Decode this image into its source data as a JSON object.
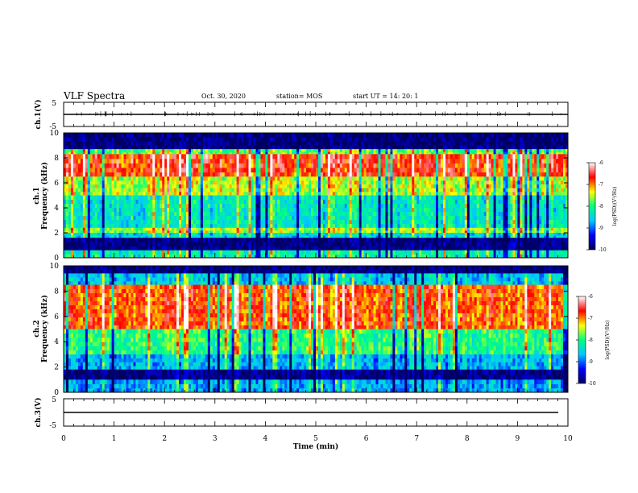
{
  "header": {
    "title": "VLF Spectra",
    "date": "Oct. 30, 2020",
    "station": "station= MOS",
    "start": "start UT =  14: 20: 1"
  },
  "colors": {
    "colormap": [
      "#000060",
      "#0000ff",
      "#00c8ff",
      "#00ff80",
      "#ffff00",
      "#ff0000",
      "#ffffff"
    ],
    "axis": "#000000"
  },
  "chart_data": [
    {
      "type": "line",
      "name": "waveform-ch1",
      "ylabel": "ch.1(V)",
      "ylim": [
        -5,
        5
      ],
      "yticks": [
        "5",
        "-5"
      ],
      "xlim": [
        0,
        10
      ],
      "level": 0
    },
    {
      "type": "heatmap",
      "name": "spectrogram-ch1",
      "ylabel_line1": "ch.1",
      "ylabel_line2": "Frequency (kHz)",
      "ylim": [
        0,
        10
      ],
      "yticks": [
        "0",
        "2",
        "4",
        "6",
        "8",
        "10"
      ],
      "xlim": [
        0,
        10
      ],
      "colorbar": {
        "label": "log(PSD)(V²/Hz)",
        "range": [
          -10,
          -6
        ],
        "ticks": [
          "-6",
          "-7",
          "-8",
          "-9",
          "-10"
        ]
      },
      "bands": [
        {
          "f0": 8.7,
          "f1": 10.0,
          "level": 0.02
        },
        {
          "f0": 8.3,
          "f1": 8.7,
          "level": 0.55
        },
        {
          "f0": 6.5,
          "f1": 8.3,
          "level": 0.82
        },
        {
          "f0": 5.0,
          "f1": 6.5,
          "level": 0.62
        },
        {
          "f0": 2.4,
          "f1": 5.0,
          "level": 0.42
        },
        {
          "f0": 2.0,
          "f1": 2.4,
          "level": 0.6
        },
        {
          "f0": 1.6,
          "f1": 2.0,
          "level": 0.38
        },
        {
          "f0": 0.6,
          "f1": 1.6,
          "level": 0.04
        },
        {
          "f0": 0.0,
          "f1": 0.6,
          "level": 0.45
        }
      ]
    },
    {
      "type": "heatmap",
      "name": "spectrogram-ch2",
      "ylabel_line1": "ch.2",
      "ylabel_line2": "Frequency (kHz)",
      "ylim": [
        0,
        10
      ],
      "yticks": [
        "0",
        "2",
        "4",
        "6",
        "8",
        "10"
      ],
      "xlim": [
        0,
        10
      ],
      "colorbar": {
        "label": "log(PSD)(V²/Hz)",
        "range": [
          -10,
          -6
        ],
        "ticks": [
          "-6",
          "-7",
          "-8",
          "-9",
          "-10"
        ]
      },
      "bands": [
        {
          "f0": 9.4,
          "f1": 10.0,
          "level": 0.02
        },
        {
          "f0": 8.5,
          "f1": 9.4,
          "level": 0.35
        },
        {
          "f0": 5.0,
          "f1": 8.5,
          "level": 0.78
        },
        {
          "f0": 3.0,
          "f1": 5.0,
          "level": 0.5
        },
        {
          "f0": 1.8,
          "f1": 3.0,
          "level": 0.32
        },
        {
          "f0": 1.0,
          "f1": 1.8,
          "level": 0.04
        },
        {
          "f0": 0.0,
          "f1": 1.0,
          "level": 0.3
        }
      ]
    },
    {
      "type": "line",
      "name": "waveform-ch3",
      "ylabel": "ch.3(V)",
      "ylim": [
        -5,
        5
      ],
      "yticks": [
        "5",
        "-5"
      ],
      "xlim": [
        0,
        10
      ],
      "level": 0
    }
  ],
  "xaxis": {
    "label": "Time (min)",
    "range": [
      0,
      10
    ],
    "ticks": [
      "0",
      "1",
      "2",
      "3",
      "4",
      "5",
      "6",
      "7",
      "8",
      "9",
      "10"
    ]
  }
}
